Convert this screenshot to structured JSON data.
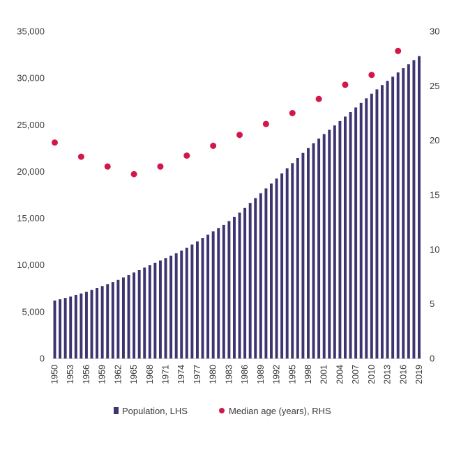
{
  "chart_data": {
    "type": "bar",
    "title": "",
    "xlabel": "",
    "ylabel": "",
    "x": [
      1950,
      1951,
      1952,
      1953,
      1954,
      1955,
      1956,
      1957,
      1958,
      1959,
      1960,
      1961,
      1962,
      1963,
      1964,
      1965,
      1966,
      1967,
      1968,
      1969,
      1970,
      1971,
      1972,
      1973,
      1974,
      1975,
      1976,
      1977,
      1978,
      1979,
      1980,
      1981,
      1982,
      1983,
      1984,
      1985,
      1986,
      1987,
      1988,
      1989,
      1990,
      1991,
      1992,
      1993,
      1994,
      1995,
      1996,
      1997,
      1998,
      1999,
      2000,
      2001,
      2002,
      2003,
      2004,
      2005,
      2006,
      2007,
      2008,
      2009,
      2010,
      2011,
      2012,
      2013,
      2014,
      2015,
      2016,
      2017,
      2018,
      2019
    ],
    "x_tick_labels": [
      "1950",
      "1953",
      "1956",
      "1959",
      "1962",
      "1965",
      "1968",
      "1971",
      "1974",
      "1977",
      "1980",
      "1983",
      "1986",
      "1989",
      "1992",
      "1995",
      "1998",
      "2001",
      "2004",
      "2007",
      "2010",
      "2013",
      "2016",
      "2019"
    ],
    "y_left_ticks": [
      "0",
      "5,000",
      "10,000",
      "15,000",
      "20,000",
      "25,000",
      "30,000",
      "35,000"
    ],
    "y_left_lim": [
      0,
      35000
    ],
    "y_right_ticks": [
      "0",
      "5",
      "10",
      "15",
      "20",
      "25",
      "30"
    ],
    "y_right_lim": [
      0,
      30
    ],
    "series": [
      {
        "name": "Population, LHS",
        "type": "bar",
        "axis": "left",
        "color": "#3d3470",
        "values": [
          6200,
          6330,
          6470,
          6620,
          6780,
          6950,
          7130,
          7320,
          7520,
          7730,
          7950,
          8180,
          8420,
          8670,
          8930,
          9200,
          9460,
          9720,
          9970,
          10220,
          10470,
          10720,
          10980,
          11250,
          11540,
          11850,
          12180,
          12520,
          12880,
          13240,
          13600,
          13940,
          14300,
          14690,
          15130,
          15600,
          16100,
          16620,
          17150,
          17680,
          18200,
          18720,
          19250,
          19790,
          20340,
          20900,
          21450,
          21990,
          22510,
          23020,
          23520,
          24000,
          24460,
          24930,
          25400,
          25880,
          26360,
          26850,
          27340,
          27830,
          28320,
          28790,
          29250,
          29700,
          30150,
          30600,
          31050,
          31480,
          31920,
          32350
        ]
      },
      {
        "name": "Median age (years), RHS",
        "type": "scatter",
        "axis": "right",
        "color": "#d2174a",
        "x": [
          1950,
          1955,
          1960,
          1965,
          1970,
          1975,
          1980,
          1985,
          1990,
          1995,
          2000,
          2005,
          2010,
          2015
        ],
        "values": [
          19.8,
          18.5,
          17.6,
          16.9,
          17.6,
          18.6,
          19.5,
          20.5,
          21.5,
          22.5,
          23.8,
          25.1,
          26.0,
          28.2
        ]
      }
    ],
    "legend": {
      "placement": "bottom",
      "items": [
        {
          "label": "Population, LHS",
          "marker": "square",
          "color": "#3d3470"
        },
        {
          "label": "Median age (years), RHS",
          "marker": "circle",
          "color": "#d2174a"
        }
      ]
    },
    "grid": false
  }
}
